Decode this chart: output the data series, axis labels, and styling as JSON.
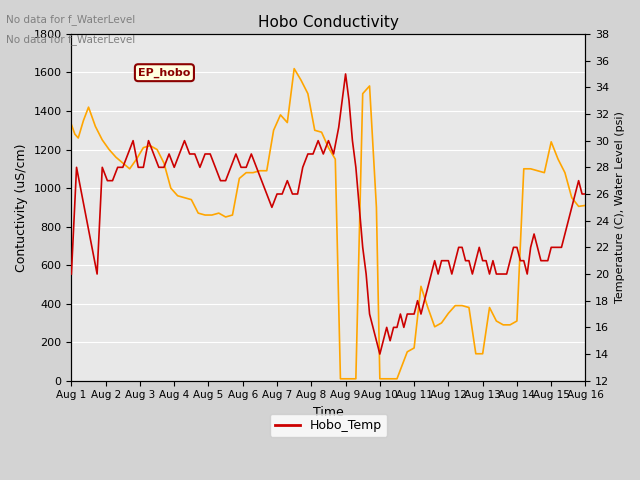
{
  "title": "Hobo Conductivity",
  "xlabel": "Time",
  "ylabel_left": "Contuctivity (uS/cm)",
  "ylabel_right": "Temperature (C), Water Level (psi)",
  "note1": "No data for f_WaterLevel",
  "note2": "No data for f_WaterLevel",
  "ep_hobo_label": "EP_hobo",
  "xlim": [
    0,
    15
  ],
  "ylim_left": [
    0,
    1800
  ],
  "ylim_right": [
    12,
    38
  ],
  "xtick_labels": [
    "Aug 1",
    "Aug 2",
    "Aug 3",
    "Aug 4",
    "Aug 5",
    "Aug 6",
    "Aug 7",
    "Aug 8",
    "Aug 9",
    "Aug 10",
    "Aug 11",
    "Aug 12",
    "Aug 13",
    "Aug 14",
    "Aug 15",
    "Aug 16"
  ],
  "yticks_left": [
    0,
    200,
    400,
    600,
    800,
    1000,
    1200,
    1400,
    1600,
    1800
  ],
  "yticks_right": [
    12,
    14,
    16,
    18,
    20,
    22,
    24,
    26,
    28,
    30,
    32,
    34,
    36,
    38
  ],
  "color_cond": "#FFA500",
  "color_temp": "#CC0000",
  "bg_color": "#DCDCDC",
  "plot_bg": "#E8E8E8",
  "legend_temp": "Hobo_Temp",
  "cond_x": [
    0,
    0.1,
    0.2,
    0.35,
    0.5,
    0.7,
    0.9,
    1.1,
    1.3,
    1.5,
    1.7,
    1.9,
    2.1,
    2.3,
    2.5,
    2.7,
    2.9,
    3.1,
    3.3,
    3.5,
    3.7,
    3.9,
    4.1,
    4.3,
    4.5,
    4.7,
    4.9,
    5.1,
    5.3,
    5.5,
    5.7,
    5.9,
    6.1,
    6.3,
    6.5,
    6.7,
    6.9,
    7.1,
    7.3,
    7.5,
    7.7,
    7.85,
    8.0,
    8.15,
    8.3,
    8.5,
    8.7,
    8.9,
    9.0,
    9.1,
    9.5,
    9.8,
    10.0,
    10.2,
    10.4,
    10.6,
    10.8,
    11.0,
    11.2,
    11.4,
    11.6,
    11.8,
    12.0,
    12.2,
    12.4,
    12.6,
    12.8,
    13.0,
    13.2,
    13.4,
    13.6,
    13.8,
    14.0,
    14.2,
    14.4,
    14.6,
    14.8,
    15.0
  ],
  "cond_y": [
    1330,
    1280,
    1260,
    1350,
    1420,
    1320,
    1250,
    1200,
    1160,
    1130,
    1100,
    1150,
    1210,
    1220,
    1200,
    1130,
    1000,
    960,
    950,
    940,
    870,
    860,
    860,
    870,
    850,
    860,
    1050,
    1080,
    1080,
    1090,
    1090,
    1300,
    1380,
    1340,
    1620,
    1560,
    1490,
    1300,
    1290,
    1210,
    1150,
    10,
    10,
    10,
    10,
    1490,
    1530,
    900,
    10,
    10,
    10,
    150,
    170,
    490,
    380,
    280,
    300,
    350,
    390,
    390,
    380,
    140,
    140,
    380,
    310,
    290,
    290,
    310,
    1100,
    1100,
    1090,
    1080,
    1240,
    1150,
    1080,
    950,
    905,
    910
  ],
  "temp_x": [
    0,
    0.15,
    0.3,
    0.45,
    0.6,
    0.75,
    0.9,
    1.05,
    1.2,
    1.35,
    1.5,
    1.65,
    1.8,
    1.95,
    2.1,
    2.25,
    2.4,
    2.55,
    2.7,
    2.85,
    3.0,
    3.15,
    3.3,
    3.45,
    3.6,
    3.75,
    3.9,
    4.05,
    4.2,
    4.35,
    4.5,
    4.65,
    4.8,
    4.95,
    5.1,
    5.25,
    5.4,
    5.55,
    5.7,
    5.85,
    6.0,
    6.15,
    6.3,
    6.45,
    6.6,
    6.75,
    6.9,
    7.05,
    7.2,
    7.35,
    7.5,
    7.65,
    7.8,
    7.9,
    8.0,
    8.1,
    8.2,
    8.3,
    8.4,
    8.5,
    8.6,
    8.7,
    8.8,
    8.9,
    9.0,
    9.1,
    9.2,
    9.3,
    9.4,
    9.5,
    9.6,
    9.7,
    9.8,
    9.9,
    10.0,
    10.1,
    10.2,
    10.3,
    10.4,
    10.5,
    10.6,
    10.7,
    10.8,
    10.9,
    11.0,
    11.1,
    11.2,
    11.3,
    11.4,
    11.5,
    11.6,
    11.7,
    11.8,
    11.9,
    12.0,
    12.1,
    12.2,
    12.3,
    12.4,
    12.5,
    12.6,
    12.7,
    12.8,
    12.9,
    13.0,
    13.1,
    13.2,
    13.3,
    13.4,
    13.5,
    13.6,
    13.7,
    13.8,
    13.9,
    14.0,
    14.1,
    14.2,
    14.3,
    14.4,
    14.5,
    14.6,
    14.7,
    14.8,
    14.9,
    15.0
  ],
  "temp_y": [
    20,
    28,
    26,
    24,
    22,
    20,
    28,
    27,
    27,
    28,
    28,
    29,
    30,
    28,
    28,
    30,
    29,
    28,
    28,
    29,
    28,
    29,
    30,
    29,
    29,
    28,
    29,
    29,
    28,
    27,
    27,
    28,
    29,
    28,
    28,
    29,
    28,
    27,
    26,
    25,
    26,
    26,
    27,
    26,
    26,
    28,
    29,
    29,
    30,
    29,
    30,
    29,
    31,
    33,
    35,
    33,
    30,
    28,
    25,
    22,
    20,
    17,
    16,
    15,
    14,
    15,
    16,
    15,
    16,
    16,
    17,
    16,
    17,
    17,
    17,
    18,
    17,
    18,
    19,
    20,
    21,
    20,
    21,
    21,
    21,
    20,
    21,
    22,
    22,
    21,
    21,
    20,
    21,
    22,
    21,
    21,
    20,
    21,
    20,
    20,
    20,
    20,
    21,
    22,
    22,
    21,
    21,
    20,
    22,
    23,
    22,
    21,
    21,
    21,
    22,
    22,
    22,
    22,
    23,
    24,
    25,
    26,
    27,
    26,
    26
  ]
}
